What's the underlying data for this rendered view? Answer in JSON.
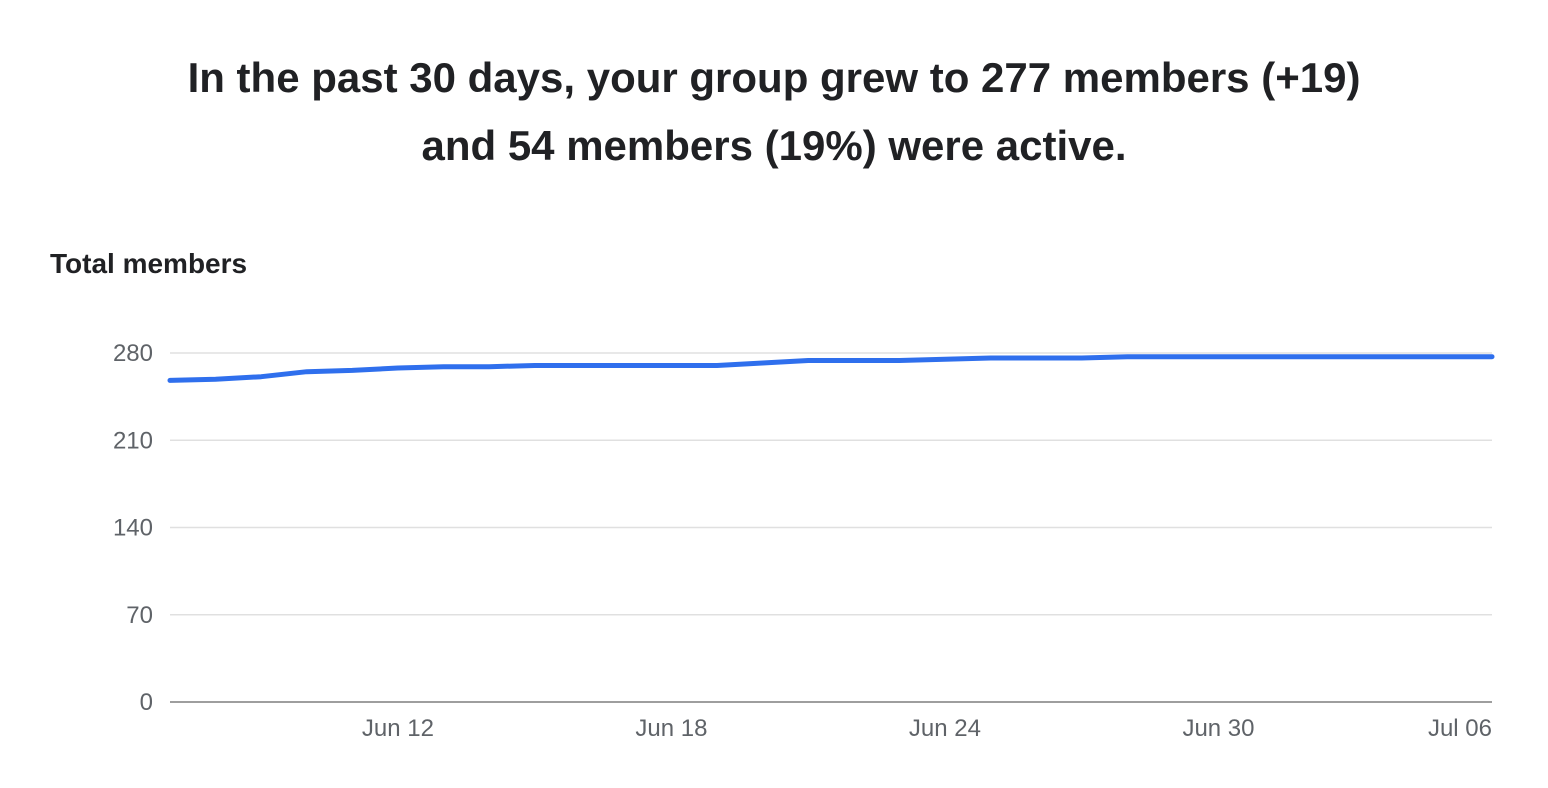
{
  "headline": {
    "line1": "In the past 30 days, your group grew to 277 members (+19)",
    "line2": "and 54 members (19%) were active."
  },
  "chart_data": {
    "type": "line",
    "title": "Total members",
    "xlabel": "",
    "ylabel": "",
    "ylim": [
      0,
      280
    ],
    "y_ticks": [
      "0",
      "70",
      "140",
      "210",
      "280"
    ],
    "x_tick_labels": [
      "Jun 12",
      "Jun 18",
      "Jun 24",
      "Jun 30",
      "Jul 06"
    ],
    "x": [
      "Jun 07",
      "Jun 08",
      "Jun 09",
      "Jun 10",
      "Jun 11",
      "Jun 12",
      "Jun 13",
      "Jun 14",
      "Jun 15",
      "Jun 16",
      "Jun 17",
      "Jun 18",
      "Jun 19",
      "Jun 20",
      "Jun 21",
      "Jun 22",
      "Jun 23",
      "Jun 24",
      "Jun 25",
      "Jun 26",
      "Jun 27",
      "Jun 28",
      "Jun 29",
      "Jun 30",
      "Jul 01",
      "Jul 02",
      "Jul 03",
      "Jul 04",
      "Jul 05",
      "Jul 06"
    ],
    "series": [
      {
        "values": [
          258,
          259,
          261,
          265,
          266,
          268,
          269,
          269,
          270,
          270,
          270,
          270,
          270,
          272,
          274,
          274,
          274,
          275,
          276,
          276,
          276,
          277,
          277,
          277,
          277,
          277,
          277,
          277,
          277,
          277
        ]
      }
    ],
    "grid": true,
    "legend": "none",
    "colors": {
      "line": "#2f6fed",
      "grid": "#e0e0e0",
      "axis": "#9e9e9e",
      "tick_text": "#5f6368"
    }
  }
}
